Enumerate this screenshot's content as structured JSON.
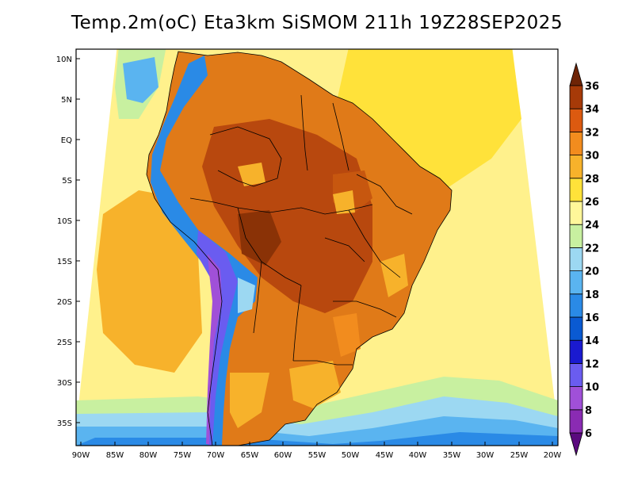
{
  "title": "Temp.2m(oC) Eta3km SiSMOM 211h 19Z28SEP2025",
  "map": {
    "lat_labels": [
      "10N",
      "5N",
      "EQ",
      "5S",
      "10S",
      "15S",
      "20S",
      "25S",
      "30S",
      "35S"
    ],
    "lon_labels": [
      "90W",
      "85W",
      "80W",
      "75W",
      "70W",
      "65W",
      "60W",
      "55W",
      "50W",
      "45W",
      "40W",
      "35W",
      "30W",
      "25W",
      "20W"
    ]
  },
  "colorbar": {
    "levels": [
      "6",
      "8",
      "10",
      "12",
      "14",
      "16",
      "18",
      "20",
      "22",
      "24",
      "26",
      "28",
      "30",
      "32",
      "34",
      "36"
    ],
    "colors": [
      "#5a0a7e",
      "#8a2bb3",
      "#a050d8",
      "#6a5cf0",
      "#1a1ad0",
      "#0a5ad2",
      "#2a8ae6",
      "#5ab4f0",
      "#9cd8f2",
      "#c8f0a0",
      "#fff79a",
      "#ffe23a",
      "#f7b22b",
      "#f28c1e",
      "#dc5a10",
      "#a63a08",
      "#6e2406"
    ]
  }
}
